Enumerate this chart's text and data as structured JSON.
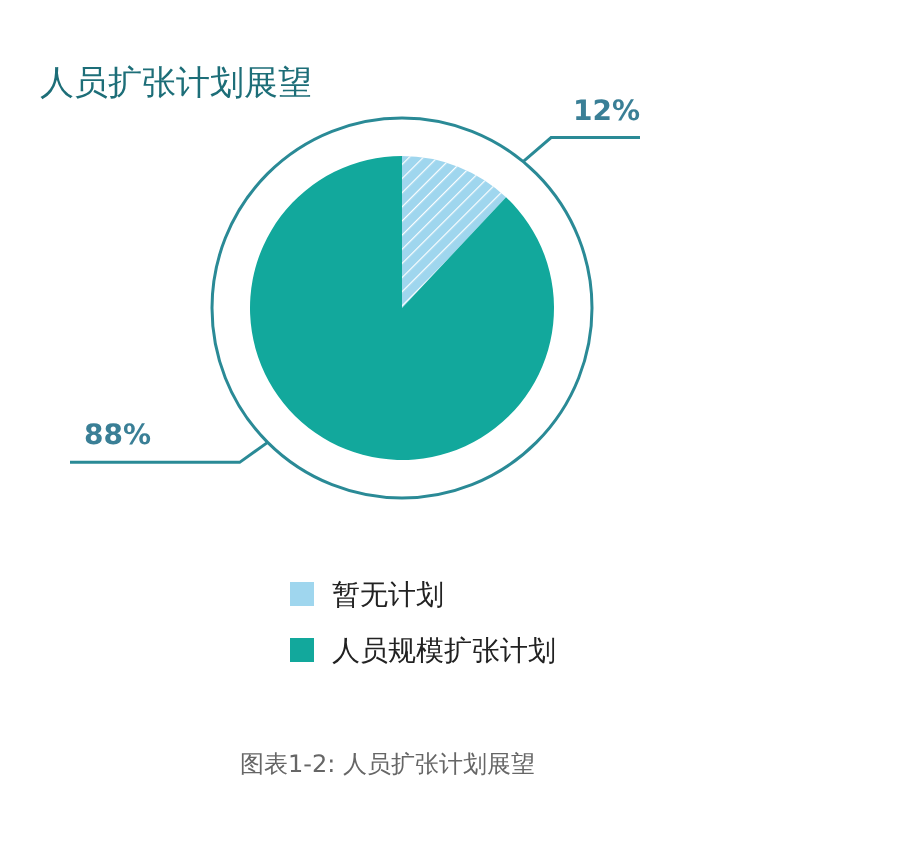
{
  "chart_data": {
    "type": "pie",
    "title": "人员扩张计划展望",
    "categories": [
      "暂无计划",
      "人员规模扩张计划"
    ],
    "values": [
      12,
      88
    ],
    "colors": [
      "#9fd6ee",
      "#12a89c"
    ],
    "value_labels": [
      "12%",
      "88%"
    ],
    "legend": "bottom",
    "annotations": [
      "图表1-2: 人员扩张计划展望"
    ]
  }
}
